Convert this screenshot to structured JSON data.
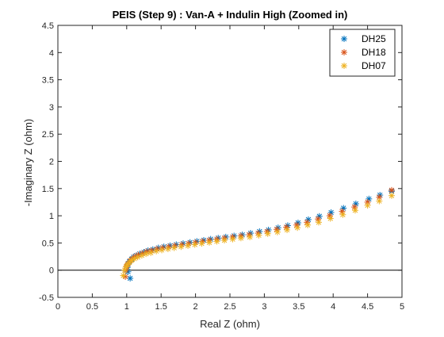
{
  "chart_data": {
    "type": "scatter",
    "title": "PEIS (Step 9) : Van-A + Indulin High (Zoomed in)",
    "xlabel": "Real Z (ohm)",
    "ylabel": "-Imaginary Z (ohm)",
    "xlim": [
      0,
      5
    ],
    "ylim": [
      -0.5,
      4.5
    ],
    "xticks": [
      "0",
      "0.5",
      "1",
      "1.5",
      "2",
      "2.5",
      "3",
      "3.5",
      "4",
      "4.5",
      "5"
    ],
    "yticks": [
      "-0.5",
      "0",
      "0.5",
      "1",
      "1.5",
      "2",
      "2.5",
      "3",
      "3.5",
      "4",
      "4.5"
    ],
    "reference_line_y": 0,
    "grid": false,
    "legend_position": "top-right",
    "marker": "asterisk",
    "series": [
      {
        "name": "DH25",
        "color": "#0072BD",
        "x": [
          1.05,
          1.02,
          1.01,
          1.02,
          1.04,
          1.07,
          1.1,
          1.14,
          1.19,
          1.25,
          1.31,
          1.38,
          1.46,
          1.54,
          1.63,
          1.72,
          1.82,
          1.92,
          2.02,
          2.12,
          2.22,
          2.33,
          2.44,
          2.56,
          2.68,
          2.8,
          2.93,
          3.06,
          3.2,
          3.34,
          3.49,
          3.64,
          3.8,
          3.97,
          4.15,
          4.33,
          4.52,
          4.68,
          4.85
        ],
        "y": [
          -0.15,
          -0.03,
          0.05,
          0.11,
          0.16,
          0.2,
          0.24,
          0.27,
          0.3,
          0.33,
          0.36,
          0.38,
          0.41,
          0.43,
          0.45,
          0.47,
          0.49,
          0.51,
          0.53,
          0.55,
          0.57,
          0.59,
          0.61,
          0.63,
          0.65,
          0.68,
          0.71,
          0.74,
          0.78,
          0.82,
          0.87,
          0.93,
          0.99,
          1.06,
          1.14,
          1.22,
          1.31,
          1.38,
          1.45
        ]
      },
      {
        "name": "DH18",
        "color": "#D95319",
        "x": [
          0.98,
          0.99,
          1.0,
          1.02,
          1.05,
          1.08,
          1.12,
          1.17,
          1.23,
          1.29,
          1.36,
          1.44,
          1.52,
          1.61,
          1.7,
          1.8,
          1.9,
          2.0,
          2.1,
          2.2,
          2.31,
          2.42,
          2.54,
          2.66,
          2.78,
          2.91,
          3.04,
          3.18,
          3.32,
          3.47,
          3.62,
          3.78,
          3.95,
          4.13,
          4.31,
          4.5,
          4.67,
          4.85
        ],
        "y": [
          -0.12,
          0.0,
          0.07,
          0.12,
          0.17,
          0.21,
          0.25,
          0.28,
          0.31,
          0.34,
          0.36,
          0.39,
          0.41,
          0.43,
          0.45,
          0.47,
          0.49,
          0.51,
          0.53,
          0.55,
          0.57,
          0.59,
          0.61,
          0.63,
          0.65,
          0.68,
          0.71,
          0.75,
          0.79,
          0.83,
          0.88,
          0.94,
          1.0,
          1.08,
          1.16,
          1.25,
          1.34,
          1.47
        ]
      },
      {
        "name": "DH07",
        "color": "#EDB120",
        "x": [
          0.95,
          0.97,
          0.99,
          1.01,
          1.04,
          1.07,
          1.11,
          1.16,
          1.22,
          1.28,
          1.35,
          1.43,
          1.51,
          1.6,
          1.69,
          1.79,
          1.89,
          1.99,
          2.09,
          2.2,
          2.31,
          2.42,
          2.54,
          2.66,
          2.79,
          2.92,
          3.05,
          3.19,
          3.33,
          3.48,
          3.63,
          3.79,
          3.96,
          4.14,
          4.32,
          4.5,
          4.67,
          4.85
        ],
        "y": [
          -0.1,
          0.0,
          0.06,
          0.1,
          0.14,
          0.18,
          0.21,
          0.24,
          0.27,
          0.3,
          0.32,
          0.35,
          0.37,
          0.39,
          0.41,
          0.43,
          0.45,
          0.47,
          0.49,
          0.51,
          0.53,
          0.55,
          0.57,
          0.59,
          0.61,
          0.64,
          0.67,
          0.7,
          0.74,
          0.78,
          0.83,
          0.88,
          0.95,
          1.02,
          1.1,
          1.19,
          1.27,
          1.37
        ]
      }
    ]
  }
}
